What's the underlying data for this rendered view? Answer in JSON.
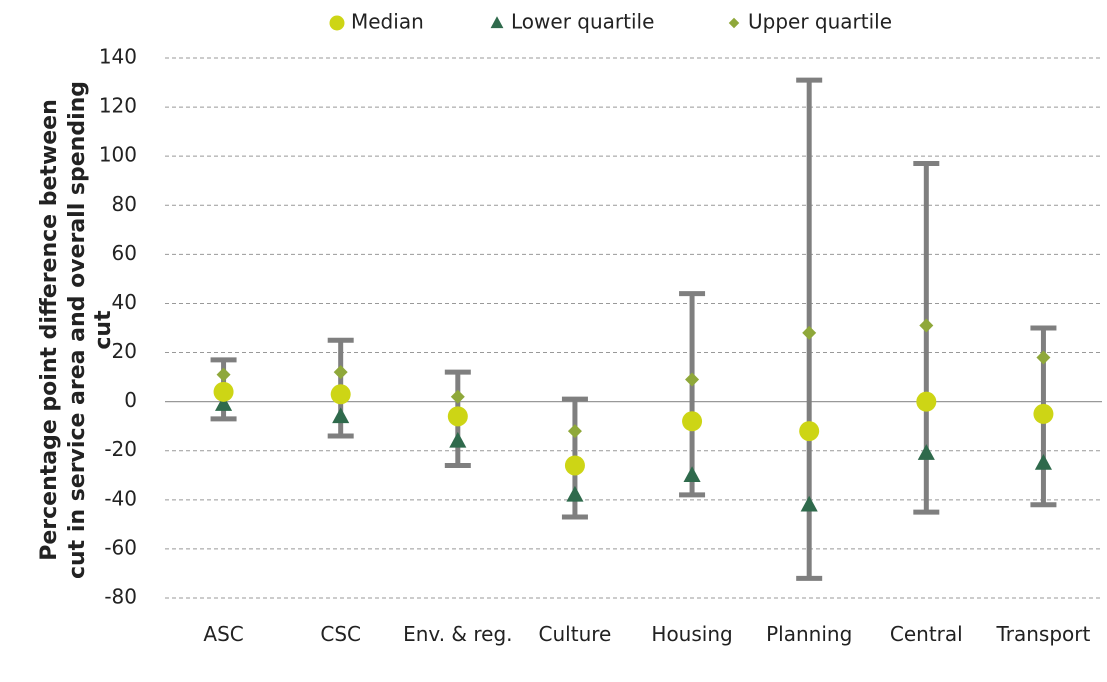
{
  "chart_data": {
    "type": "range_dot",
    "y_label": [
      "Percentage point difference between",
      "cut in service area and overall spending",
      "cut"
    ],
    "categories": [
      "ASC",
      "CSC",
      "Env. & reg.",
      "Culture",
      "Housing",
      "Planning",
      "Central",
      "Transport"
    ],
    "series": [
      {
        "name": "Median",
        "color": "#cdd515",
        "marker": "circle",
        "values": [
          4,
          3,
          -6,
          -26,
          -8,
          -12,
          0,
          -5
        ]
      },
      {
        "name": "Lower quartile",
        "color": "#2f6a4c",
        "marker": "triangle",
        "values": [
          -1,
          -6,
          -16,
          -38,
          -30,
          -42,
          -21,
          -25
        ]
      },
      {
        "name": "Upper quartile",
        "color": "#8fa83a",
        "marker": "diamond",
        "values": [
          11,
          12,
          2,
          -12,
          9,
          28,
          31,
          18
        ]
      }
    ],
    "whiskers": {
      "color": "#7f7f7f",
      "low": [
        -7,
        -14,
        -26,
        -47,
        -38,
        -72,
        -45,
        -42
      ],
      "high": [
        17,
        25,
        12,
        1,
        44,
        131,
        97,
        30
      ]
    },
    "ylim": [
      -80,
      140
    ],
    "yticks": [
      -80,
      -60,
      -40,
      -20,
      0,
      20,
      40,
      60,
      80,
      100,
      120,
      140
    ],
    "grid": true,
    "legend": "top"
  }
}
